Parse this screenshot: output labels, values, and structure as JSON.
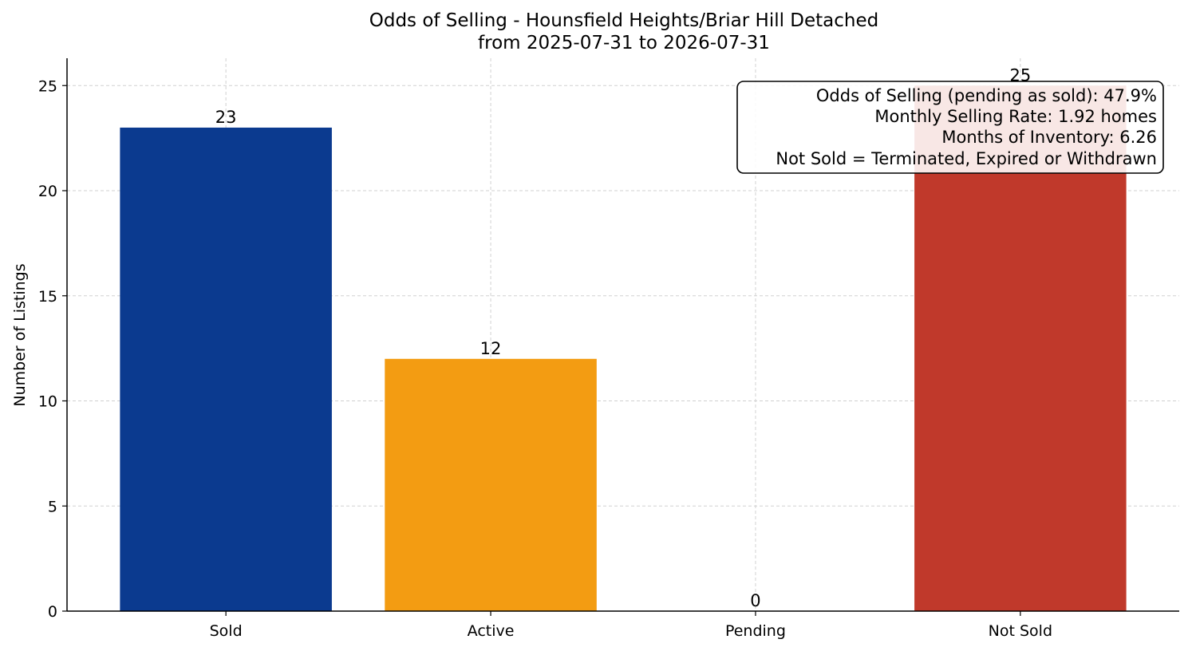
{
  "chart_data": {
    "type": "bar",
    "title": "Odds of Selling - Hounsfield Heights/Briar Hill Detached",
    "subtitle": "from 2025-07-31 to 2026-07-31",
    "xlabel": "",
    "ylabel": "Number of Listings",
    "categories": [
      "Sold",
      "Active",
      "Pending",
      "Not Sold"
    ],
    "values": [
      23,
      12,
      0,
      25
    ],
    "colors": [
      "#0b3a8f",
      "#f39c12",
      "#7f7f7f",
      "#c0392b"
    ],
    "ylim": [
      0,
      26.3
    ],
    "yticks": [
      0,
      5,
      10,
      15,
      20,
      25
    ],
    "grid": true,
    "annotation": {
      "placement": "top-right",
      "lines": [
        "Odds of Selling (pending as sold): 47.9%",
        "Monthly Selling Rate: 1.92 homes",
        "Months of Inventory: 6.26",
        "Not Sold = Terminated, Expired or Withdrawn"
      ]
    }
  }
}
